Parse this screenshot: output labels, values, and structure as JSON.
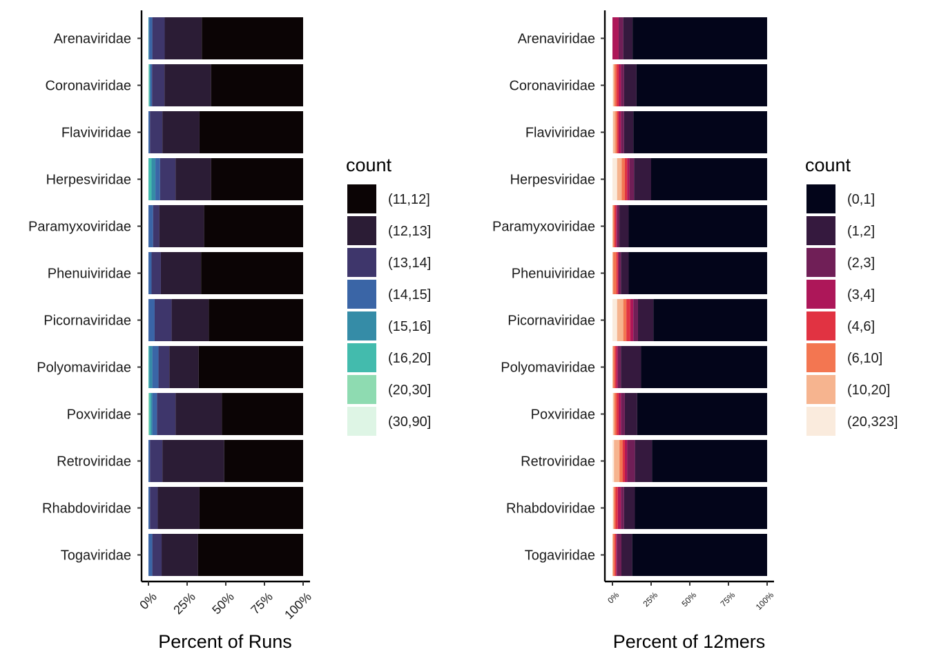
{
  "chart_data": [
    {
      "type": "bar",
      "orientation": "horizontal",
      "stacked": "percent",
      "categories": [
        "Arenaviridae",
        "Coronaviridae",
        "Flaviviridae",
        "Herpesviridae",
        "Paramyxoviridae",
        "Phenuiviridae",
        "Picornaviridae",
        "Polyomaviridae",
        "Poxviridae",
        "Retroviridae",
        "Rhabdoviridae",
        "Togaviridae"
      ],
      "xlabel": "Percent of Runs",
      "xlim": [
        0,
        100
      ],
      "xticks": [
        0,
        25,
        50,
        75,
        100
      ],
      "xtick_labels": [
        "0%",
        "25%",
        "50%",
        "75%",
        "100%"
      ],
      "legend_title": "count",
      "legend_position": "right",
      "grid": false,
      "series": [
        {
          "name": "(30,90]",
          "color": "#DEF5E5",
          "values": [
            0,
            0,
            0,
            0,
            0,
            0,
            0,
            0,
            0,
            0,
            0,
            0
          ]
        },
        {
          "name": "(20,30]",
          "color": "#8EDBB1",
          "values": [
            0,
            0.3,
            0,
            0,
            0,
            0,
            0,
            0,
            0.5,
            0,
            0,
            0
          ]
        },
        {
          "name": "(16,20]",
          "color": "#43BBAD",
          "values": [
            0,
            0.5,
            0,
            2,
            0,
            0,
            0,
            0.5,
            1,
            0,
            0,
            0
          ]
        },
        {
          "name": "(15,16]",
          "color": "#358CA7",
          "values": [
            0.5,
            0.5,
            0,
            2.5,
            0,
            0,
            0,
            2,
            1,
            0,
            0,
            0
          ]
        },
        {
          "name": "(14,15]",
          "color": "#3A65A6",
          "values": [
            2,
            1,
            1,
            3,
            3,
            2,
            4,
            4,
            3,
            1,
            1,
            2.5
          ]
        },
        {
          "name": "(13,14]",
          "color": "#3E366B",
          "values": [
            8,
            8,
            8,
            10,
            4,
            6,
            11,
            7,
            12,
            8,
            5,
            6
          ]
        },
        {
          "name": "(12,13]",
          "color": "#2B1C35",
          "values": [
            24,
            30,
            24,
            23,
            29,
            26,
            24,
            19,
            30,
            40,
            27,
            23.5
          ]
        },
        {
          "name": "(11,12]",
          "color": "#0B0405",
          "values": [
            65.5,
            59.2,
            67,
            59.5,
            64,
            66,
            61,
            67.5,
            52.5,
            51,
            67,
            68
          ]
        }
      ]
    },
    {
      "type": "bar",
      "orientation": "horizontal",
      "stacked": "percent",
      "categories": [
        "Arenaviridae",
        "Coronaviridae",
        "Flaviviridae",
        "Herpesviridae",
        "Paramyxoviridae",
        "Phenuiviridae",
        "Picornaviridae",
        "Polyomaviridae",
        "Poxviridae",
        "Retroviridae",
        "Rhabdoviridae",
        "Togaviridae"
      ],
      "xlabel": "Percent of 12mers",
      "xlim": [
        0,
        100
      ],
      "xticks": [
        0,
        25,
        50,
        75,
        100
      ],
      "xtick_labels": [
        "0%",
        "25%",
        "50%",
        "75%",
        "100%"
      ],
      "legend_title": "count",
      "legend_position": "right",
      "grid": false,
      "series": [
        {
          "name": "(20,323]",
          "color": "#FAEBDD",
          "values": [
            0,
            0.5,
            0.5,
            3,
            0,
            0,
            3,
            0,
            0.5,
            1,
            0.5,
            0
          ]
        },
        {
          "name": "(10,20]",
          "color": "#F6B48F",
          "values": [
            0,
            0.8,
            1.5,
            3,
            0.5,
            0.5,
            4,
            0.5,
            0.8,
            3.5,
            0.5,
            0.5
          ]
        },
        {
          "name": "(6,10]",
          "color": "#F37651",
          "values": [
            0,
            1.2,
            1,
            2,
            0.8,
            2,
            2,
            1,
            1.2,
            2,
            1,
            1
          ]
        },
        {
          "name": "(4,6]",
          "color": "#E13342",
          "values": [
            0,
            1.5,
            1,
            1.5,
            1,
            1,
            2.5,
            1,
            1.5,
            1.5,
            1.5,
            0.8
          ]
        },
        {
          "name": "(3,4]",
          "color": "#AD1759",
          "values": [
            4,
            1.5,
            1.5,
            1.5,
            0.7,
            0.5,
            2,
            1,
            1.5,
            1.5,
            2,
            0.5
          ]
        },
        {
          "name": "(2,3]",
          "color": "#701F57",
          "values": [
            3,
            2,
            2,
            3,
            1.5,
            1.5,
            3,
            2,
            2.5,
            5,
            2,
            3
          ]
        },
        {
          "name": "(1,2]",
          "color": "#35193E",
          "values": [
            6,
            8,
            6,
            11,
            6,
            5,
            10,
            13,
            8,
            11,
            7,
            7
          ]
        },
        {
          "name": "(0,1]",
          "color": "#03051A",
          "values": [
            87,
            84,
            86.5,
            75,
            89.5,
            89.5,
            73.5,
            81.5,
            84,
            74,
            85.5,
            87.2
          ]
        }
      ]
    }
  ]
}
